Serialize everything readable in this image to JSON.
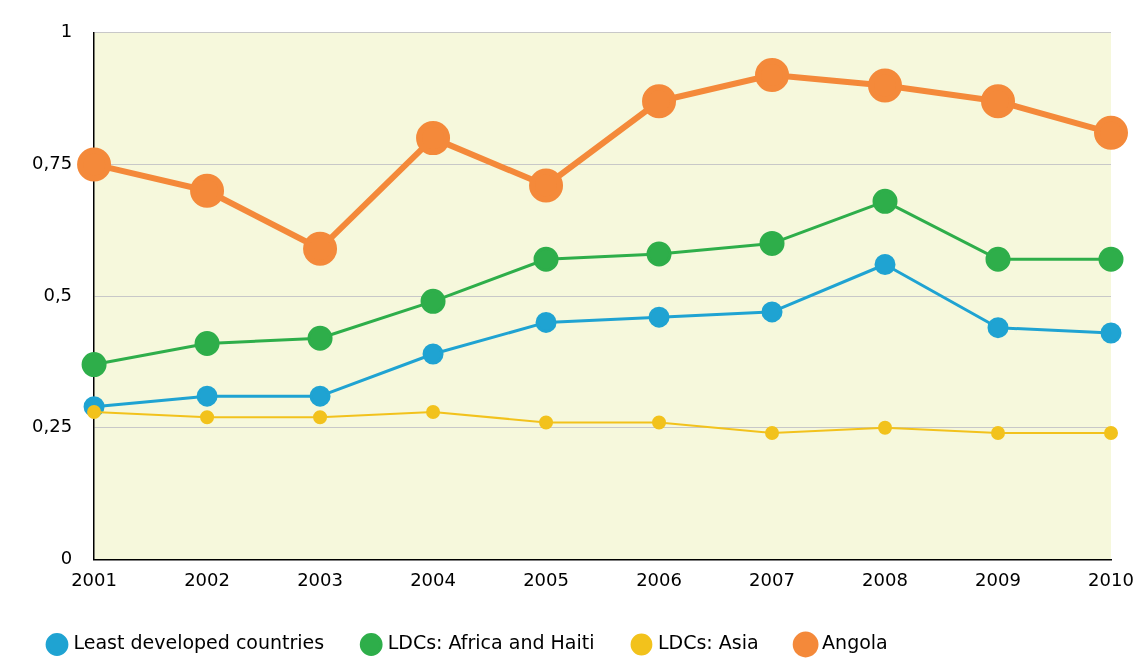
{
  "chart_data": {
    "type": "line",
    "categories": [
      "2001",
      "2002",
      "2003",
      "2004",
      "2005",
      "2006",
      "2007",
      "2008",
      "2009",
      "2010"
    ],
    "series": [
      {
        "name": "Least developed countries",
        "color": "#1fa3d2",
        "values": [
          0.29,
          0.31,
          0.31,
          0.39,
          0.45,
          0.46,
          0.47,
          0.56,
          0.44,
          0.43
        ]
      },
      {
        "name": "LDCs: Africa and Haiti",
        "color": "#2eae4a",
        "values": [
          0.37,
          0.41,
          0.42,
          0.49,
          0.57,
          0.58,
          0.6,
          0.68,
          0.57,
          0.57
        ]
      },
      {
        "name": "LDCs: Asia",
        "color": "#f2c21c",
        "values": [
          0.28,
          0.27,
          0.27,
          0.28,
          0.26,
          0.26,
          0.24,
          0.25,
          0.24,
          0.24
        ]
      },
      {
        "name": "Angola",
        "color": "#f4893a",
        "values": [
          0.75,
          0.7,
          0.59,
          0.8,
          0.71,
          0.87,
          0.92,
          0.9,
          0.87,
          0.81
        ]
      }
    ],
    "ylim": [
      0,
      1
    ],
    "yticks": [
      0,
      {
        "value": 0.25,
        "label": "0,25"
      },
      {
        "value": 0.5,
        "label": "0,5"
      },
      {
        "value": 0.75,
        "label": "0,75"
      },
      1
    ],
    "grid": "y",
    "legend": "bottom",
    "marker": "circle",
    "line_style": "solid"
  }
}
